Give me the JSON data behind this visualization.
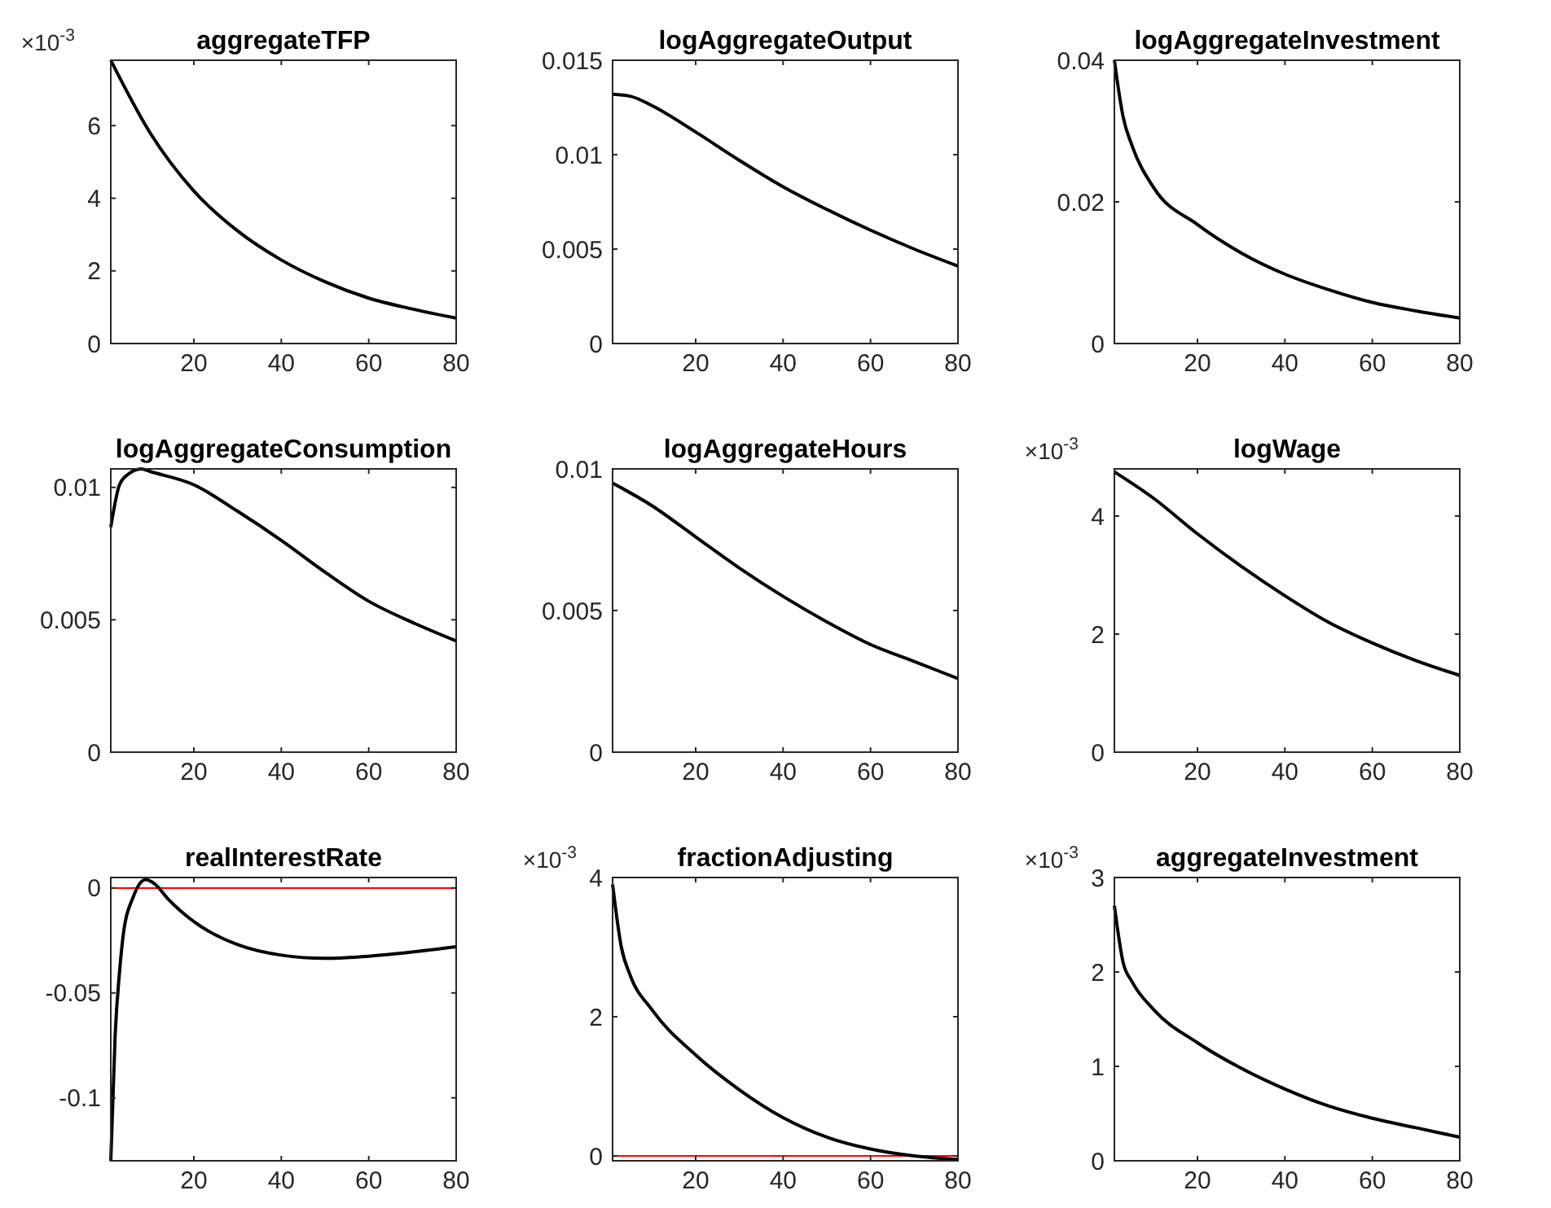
{
  "chart_data": [
    {
      "type": "line",
      "title": "aggregateTFP",
      "annotations": [
        "×10$^{-3}$"
      ],
      "x": [
        1,
        10,
        20,
        30,
        40,
        50,
        60,
        70,
        80
      ],
      "series": [
        {
          "color": "#000000",
          "values": [
            7.8,
            5.8,
            4.2,
            3.1,
            2.3,
            1.7,
            1.25,
            0.95,
            0.7
          ]
        }
      ],
      "xlim": [
        1,
        80
      ],
      "xticks": [
        20,
        40,
        60,
        80
      ],
      "ylim": [
        0,
        7.8
      ],
      "yticks": [
        0,
        2,
        4,
        6
      ]
    },
    {
      "type": "line",
      "title": "logAggregateOutput",
      "x": [
        1,
        5,
        10,
        20,
        30,
        40,
        50,
        60,
        70,
        80
      ],
      "series": [
        {
          "color": "#000000",
          "values": [
            0.0132,
            0.0131,
            0.0126,
            0.0112,
            0.0097,
            0.0083,
            0.0071,
            0.006,
            0.005,
            0.0041
          ]
        }
      ],
      "xlim": [
        1,
        80
      ],
      "xticks": [
        20,
        40,
        60,
        80
      ],
      "ylim": [
        0,
        0.015
      ],
      "yticks": [
        0,
        0.005,
        0.01,
        0.015
      ]
    },
    {
      "type": "line",
      "title": "logAggregateInvestment",
      "x": [
        1,
        3,
        5,
        10,
        20,
        30,
        40,
        50,
        60,
        70,
        80
      ],
      "series": [
        {
          "color": "#000000",
          "values": [
            0.04,
            0.032,
            0.028,
            0.022,
            0.0168,
            0.0128,
            0.0098,
            0.0076,
            0.0058,
            0.0046,
            0.0036
          ]
        }
      ],
      "xlim": [
        1,
        80
      ],
      "xticks": [
        20,
        40,
        60,
        80
      ],
      "ylim": [
        0,
        0.04
      ],
      "yticks": [
        0,
        0.02,
        0.04
      ]
    },
    {
      "type": "line",
      "title": "logAggregateConsumption",
      "x": [
        1,
        3,
        5,
        8,
        10,
        20,
        30,
        40,
        50,
        60,
        70,
        80
      ],
      "series": [
        {
          "color": "#000000",
          "values": [
            0.0085,
            0.0101,
            0.0105,
            0.0107,
            0.0106,
            0.0101,
            0.0091,
            0.008,
            0.0068,
            0.0057,
            0.0049,
            0.0042
          ]
        }
      ],
      "xlim": [
        1,
        80
      ],
      "xticks": [
        20,
        40,
        60,
        80
      ],
      "ylim": [
        0,
        0.0107
      ],
      "yticks": [
        0,
        0.005,
        0.01
      ]
    },
    {
      "type": "line",
      "title": "logAggregateHours",
      "x": [
        1,
        10,
        20,
        30,
        40,
        50,
        60,
        70,
        80
      ],
      "series": [
        {
          "color": "#000000",
          "values": [
            0.0095,
            0.0087,
            0.0076,
            0.0065,
            0.0055,
            0.0046,
            0.0038,
            0.0032,
            0.0026
          ]
        }
      ],
      "xlim": [
        1,
        80
      ],
      "xticks": [
        20,
        40,
        60,
        80
      ],
      "ylim": [
        0,
        0.01
      ],
      "yticks": [
        0,
        0.005,
        0.01
      ]
    },
    {
      "type": "line",
      "title": "logWage",
      "annotations": [
        "×10$^{-3}$"
      ],
      "x": [
        1,
        10,
        20,
        30,
        40,
        50,
        60,
        70,
        80
      ],
      "series": [
        {
          "color": "#000000",
          "values": [
            4.75,
            4.3,
            3.7,
            3.15,
            2.65,
            2.2,
            1.85,
            1.55,
            1.3
          ]
        }
      ],
      "xlim": [
        1,
        80
      ],
      "xticks": [
        20,
        40,
        60,
        80
      ],
      "ylim": [
        0,
        4.8
      ],
      "yticks": [
        0,
        2,
        4
      ]
    },
    {
      "type": "line",
      "title": "realInterestRate",
      "x": [
        1,
        2,
        3,
        4,
        6,
        8,
        9,
        11,
        14,
        20,
        30,
        40,
        50,
        60,
        70,
        80
      ],
      "series": [
        {
          "color": "#000000",
          "values": [
            -0.13,
            -0.07,
            -0.04,
            -0.02,
            -0.005,
            0.003,
            0.004,
            0.002,
            -0.005,
            -0.016,
            -0.027,
            -0.032,
            -0.0335,
            -0.0325,
            -0.0305,
            -0.028
          ]
        }
      ],
      "xlim": [
        1,
        80
      ],
      "xticks": [
        20,
        40,
        60,
        80
      ],
      "ylim": [
        -0.13,
        0.005
      ],
      "yticks": [
        -0.1,
        -0.05,
        0
      ],
      "ref_lines": [
        {
          "axis": "y",
          "value": 0,
          "color": "#ff0000"
        }
      ]
    },
    {
      "type": "line",
      "title": "fractionAdjusting",
      "annotations": [
        "×10$^{-3}$"
      ],
      "x": [
        1,
        3,
        5,
        10,
        20,
        30,
        40,
        50,
        60,
        70,
        80
      ],
      "series": [
        {
          "color": "#000000",
          "values": [
            3.9,
            3.0,
            2.6,
            2.1,
            1.45,
            0.95,
            0.55,
            0.27,
            0.1,
            0,
            -0.05
          ]
        }
      ],
      "xlim": [
        1,
        80
      ],
      "xticks": [
        20,
        40,
        60,
        80
      ],
      "ylim": [
        -0.07,
        4
      ],
      "yticks": [
        0,
        2,
        4
      ],
      "ref_lines": [
        {
          "axis": "y",
          "value": 0,
          "color": "#ff0000"
        }
      ]
    },
    {
      "type": "line",
      "title": "aggregateInvestment",
      "annotations": [
        "×10$^{-3}$"
      ],
      "x": [
        1,
        3,
        5,
        10,
        20,
        30,
        40,
        50,
        60,
        70,
        80
      ],
      "series": [
        {
          "color": "#000000",
          "values": [
            2.7,
            2.1,
            1.9,
            1.6,
            1.25,
            0.98,
            0.76,
            0.58,
            0.45,
            0.35,
            0.25
          ]
        }
      ],
      "xlim": [
        1,
        80
      ],
      "xticks": [
        20,
        40,
        60,
        80
      ],
      "ylim": [
        0,
        3
      ],
      "yticks": [
        0,
        1,
        2,
        3
      ]
    }
  ]
}
